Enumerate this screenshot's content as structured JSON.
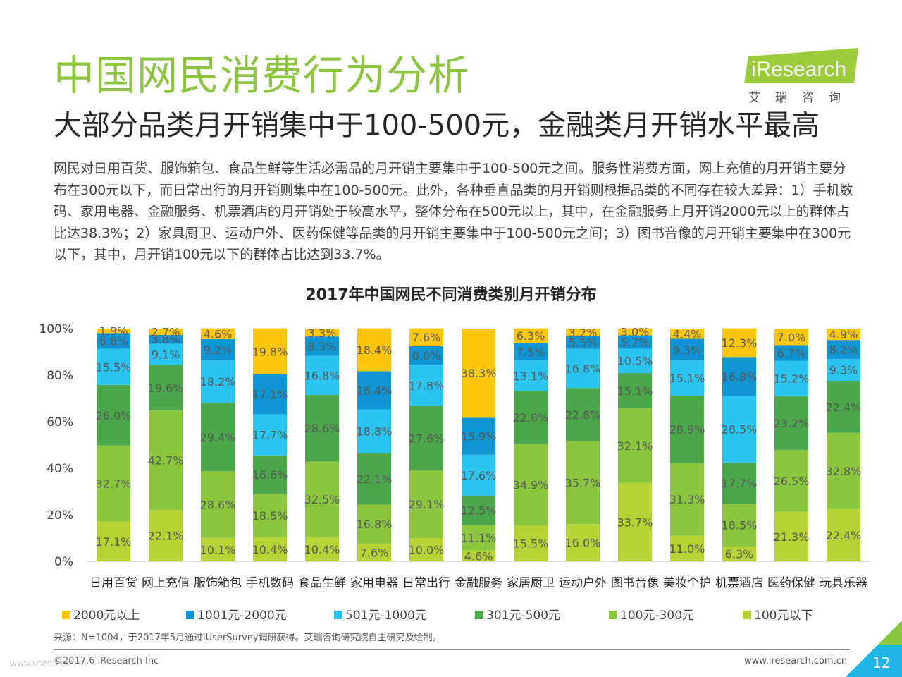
{
  "header": {
    "title": "中国网民消费行为分析",
    "subtitle": "大部分品类月开销集中于100-500元，金融类月开销水平最高",
    "body": "网民对日用百货、服饰箱包、食品生鲜等生活必需品的月开销主要集中于100-500元之间。服务性消费方面，网上充值的月开销主要分布在300元以下，而日常出行的月开销则集中在100-500元。此外，各种垂直品类的月开销则根据品类的不同存在较大差异：1）手机数码、家用电器、金融服务、机票酒店的月开销处于较高水平，整体分布在500元以上，其中，在金融服务上月开销2000元以上的群体占比达38.3%；2）家具厨卫、运动户外、医药保健等品类的月开销主要集中于100-500元之间；3）图书音像的月开销主要集中在300元以下，其中，月开销100元以下的群体占比达到33.7%。"
  },
  "logo": {
    "text": "iResearch",
    "cn": "艾瑞咨询"
  },
  "chart_data": {
    "type": "bar",
    "stacked": true,
    "title": "2017年中国网民不同消费类别月开销分布",
    "categories": [
      "日用百货",
      "网上充值",
      "服饰箱包",
      "手机数码",
      "食品生鲜",
      "家用电器",
      "日常出行",
      "金融服务",
      "家居厨卫",
      "运动户外",
      "图书音像",
      "美妆个护",
      "机票酒店",
      "医药保健",
      "玩具乐器"
    ],
    "ylim": [
      0,
      100
    ],
    "yticks": [
      "0%",
      "20%",
      "40%",
      "60%",
      "80%",
      "100%"
    ],
    "series": [
      {
        "name": "100元以下",
        "color": "#b5d334",
        "values": [
          17.1,
          22.1,
          10.1,
          10.4,
          10.4,
          7.6,
          10.0,
          4.6,
          15.5,
          16.0,
          33.7,
          11.0,
          6.3,
          21.3,
          22.4
        ]
      },
      {
        "name": "100元-300元",
        "color": "#8cc63f",
        "values": [
          32.7,
          42.7,
          28.6,
          18.5,
          32.5,
          16.8,
          29.1,
          11.1,
          34.9,
          35.7,
          32.1,
          31.3,
          18.5,
          26.5,
          32.8
        ]
      },
      {
        "name": "301元-500元",
        "color": "#4aa84a",
        "values": [
          26.0,
          19.6,
          29.4,
          16.6,
          28.6,
          22.1,
          27.6,
          12.5,
          22.8,
          22.8,
          15.1,
          28.9,
          17.7,
          23.2,
          22.4
        ]
      },
      {
        "name": "501元-1000元",
        "color": "#29c4f0",
        "values": [
          15.5,
          9.1,
          18.2,
          17.7,
          16.8,
          18.8,
          17.8,
          17.6,
          13.1,
          16.8,
          10.5,
          15.1,
          28.5,
          15.2,
          9.3
        ]
      },
      {
        "name": "1001元-2000元",
        "color": "#1096d4",
        "values": [
          6.8,
          3.8,
          9.2,
          17.1,
          8.3,
          16.4,
          8.0,
          15.9,
          7.5,
          5.5,
          5.7,
          9.3,
          16.8,
          6.7,
          8.2
        ]
      },
      {
        "name": "2000元以上",
        "color": "#fcc60c",
        "values": [
          1.9,
          2.7,
          4.6,
          19.8,
          3.3,
          18.4,
          7.6,
          38.3,
          6.3,
          3.2,
          3.0,
          4.4,
          12.3,
          7.0,
          4.9
        ]
      }
    ]
  },
  "legend": [
    {
      "label": "2000元以上",
      "color": "#fcc60c"
    },
    {
      "label": "1001元-2000元",
      "color": "#1096d4"
    },
    {
      "label": "501元-1000元",
      "color": "#29c4f0"
    },
    {
      "label": "301元-500元",
      "color": "#4aa84a"
    },
    {
      "label": "100元-300元",
      "color": "#8cc63f"
    },
    {
      "label": "100元以下",
      "color": "#b5d334"
    }
  ],
  "footer": {
    "source": "来源：N=1004，于2017年5月通过iUserSurvey调研获得。艾瑞咨询研究院自主研究及绘制。",
    "copyright": "©2017.6 iResearch Inc",
    "website": "www.iresearch.com.cn",
    "page_number": "12",
    "watermark": "www.useit.com.cn"
  }
}
